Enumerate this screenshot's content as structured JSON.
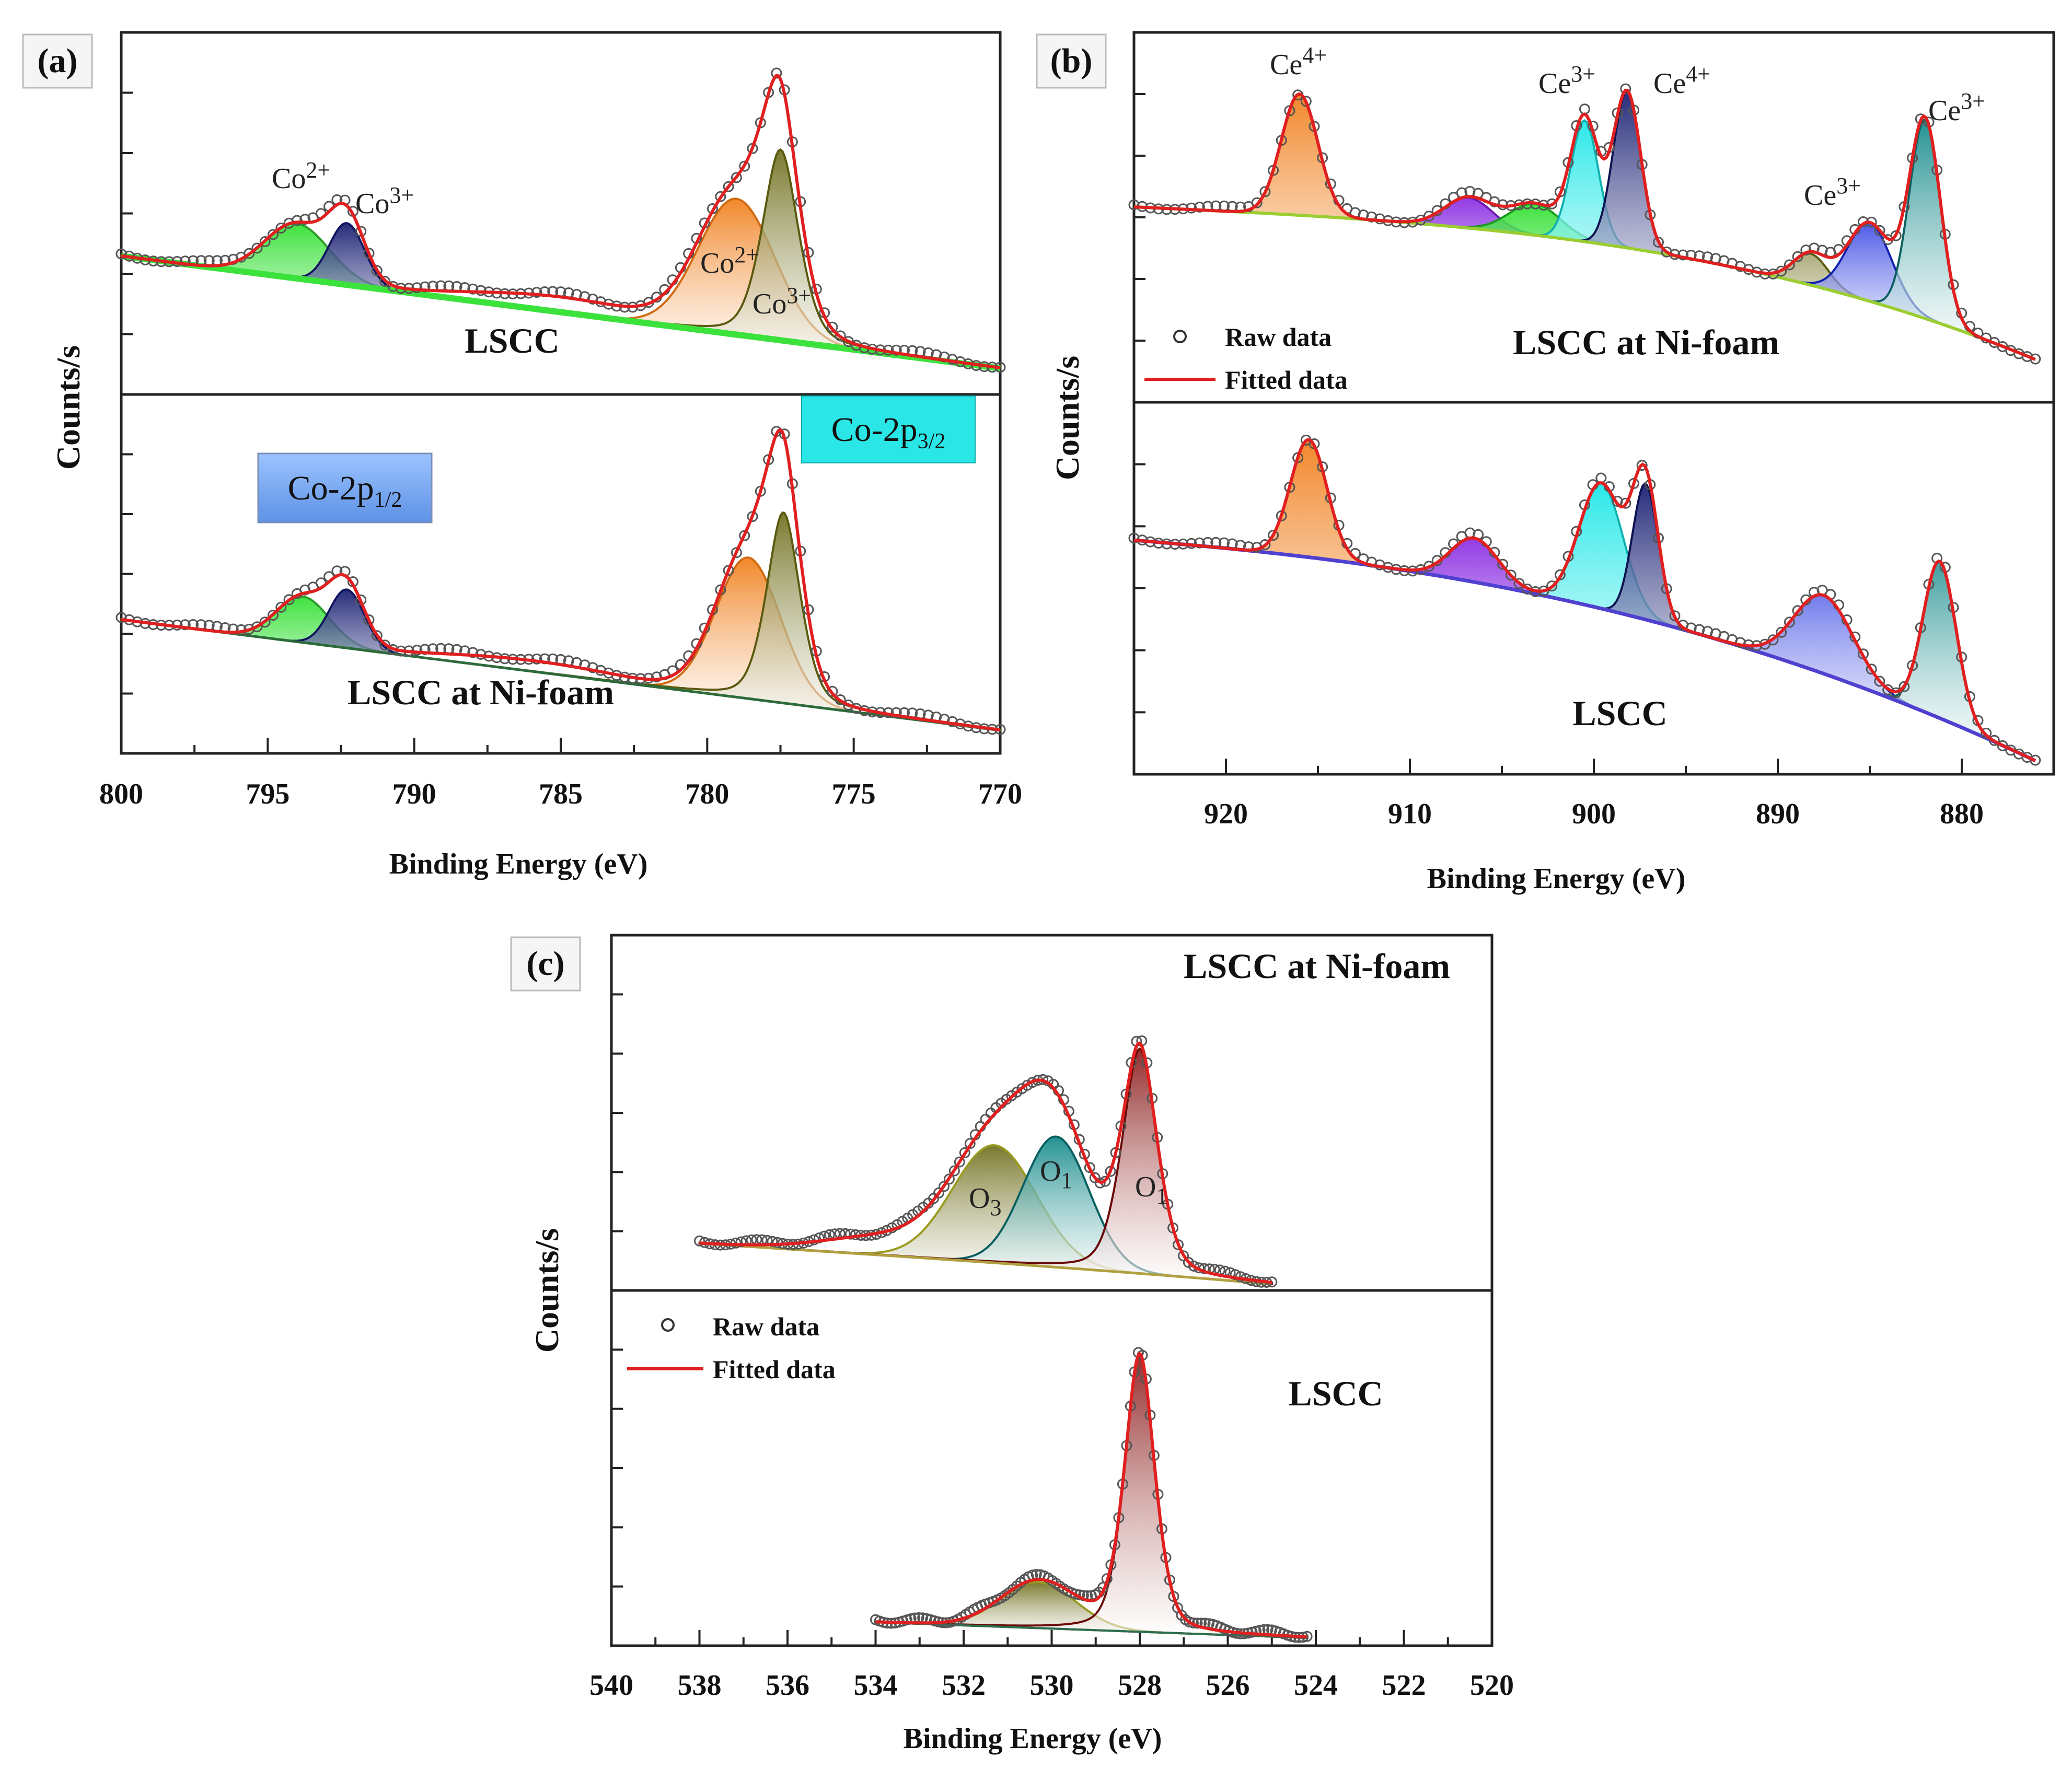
{
  "chart_data": [
    {
      "id": "a",
      "type": "line",
      "panel_label": "(a)",
      "xlabel": "Binding Energy (eV)",
      "ylabel": "Counts/s",
      "xlim": [
        800,
        770
      ],
      "xticks": [
        "800",
        "795",
        "790",
        "785",
        "780",
        "775",
        "770"
      ],
      "subplots": [
        {
          "sample": "LSCC",
          "peaks": [
            {
              "label_base": "Co",
              "label_sup": "2+",
              "center": 794.0,
              "color": "#33dd33"
            },
            {
              "label_base": "Co",
              "label_sup": "3+",
              "center": 792.3,
              "color": "#1a237e"
            },
            {
              "label_base": "Co",
              "label_sup": "2+",
              "center": 779.0,
              "color": "#f08a24"
            },
            {
              "label_base": "Co",
              "label_sup": "3+",
              "center": 777.5,
              "color": "#8b8b22"
            }
          ]
        },
        {
          "sample": "LSCC at Ni-foam",
          "peaks": [
            {
              "center": 793.8,
              "color": "#33dd33"
            },
            {
              "center": 792.3,
              "color": "#1a237e"
            },
            {
              "center": 778.6,
              "color": "#f08a24"
            },
            {
              "center": 777.4,
              "color": "#8b8b22"
            }
          ]
        }
      ],
      "region_labels": [
        {
          "base": "Co-2p",
          "sub": "1/2",
          "style": "blue-box"
        },
        {
          "base": "Co-2p",
          "sub": "3/2",
          "style": "cyan-box"
        }
      ]
    },
    {
      "id": "b",
      "type": "line",
      "panel_label": "(b)",
      "xlabel": "Binding Energy (eV)",
      "ylabel": "Counts/s",
      "xlim": [
        925,
        875
      ],
      "xticks": [
        "920",
        "910",
        "900",
        "890",
        "880"
      ],
      "legend": {
        "raw": "Raw data",
        "fitted": "Fitted data",
        "position": "bottom-left of upper subplot"
      },
      "subplots": [
        {
          "sample": "LSCC at Ni-foam",
          "peaks": [
            {
              "label_base": "Ce",
              "label_sup": "4+",
              "center": 916.0,
              "color": "#f08a24"
            },
            {
              "center": 906.8,
              "color": "#8a2be2"
            },
            {
              "center": 903.2,
              "color": "#33dd33"
            },
            {
              "label_base": "Ce",
              "label_sup": "3+",
              "center": 900.5,
              "color": "#22e8e8"
            },
            {
              "label_base": "Ce",
              "label_sup": "4+",
              "center": 898.2,
              "color": "#1a237e"
            },
            {
              "center": 888.2,
              "color": "#8b8b22"
            },
            {
              "label_base": "Ce",
              "label_sup": "3+",
              "center": 885.0,
              "color": "#2030e0"
            },
            {
              "label_base": "Ce",
              "label_sup": "3+",
              "center": 882.0,
              "color": "#118888"
            }
          ]
        },
        {
          "sample": "LSCC",
          "peaks": [
            {
              "center": 915.5,
              "color": "#f08a24"
            },
            {
              "center": 906.5,
              "color": "#8a2be2"
            },
            {
              "center": 899.6,
              "color": "#22e8e8"
            },
            {
              "center": 897.2,
              "color": "#1a237e"
            },
            {
              "center": 887.5,
              "color": "#2030e0"
            },
            {
              "center": 881.2,
              "color": "#118888"
            }
          ]
        }
      ]
    },
    {
      "id": "c",
      "type": "line",
      "panel_label": "(c)",
      "xlabel": "Binding Energy (eV)",
      "ylabel": "Counts/s",
      "xlim": [
        540,
        520
      ],
      "xticks": [
        "540",
        "538",
        "536",
        "534",
        "532",
        "530",
        "528",
        "526",
        "524",
        "522",
        "520"
      ],
      "legend": {
        "raw": "Raw data",
        "fitted": "Fitted data",
        "position": "top-left of lower subplot"
      },
      "subplots": [
        {
          "sample": "LSCC at Ni-foam",
          "peaks": [
            {
              "label_base": "O",
              "label_sub": "3",
              "center": 531.3,
              "color": "#77772a"
            },
            {
              "label_base": "O",
              "label_sub": "1",
              "center": 529.9,
              "color": "#1a7f80"
            },
            {
              "label_base": "O",
              "label_sub": "1",
              "center": 528.0,
              "color": "#8b1a1a"
            }
          ]
        },
        {
          "sample": "LSCC",
          "peaks": [
            {
              "center": 530.3,
              "color": "#77772a"
            },
            {
              "center": 528.0,
              "color": "#8b1a1a"
            }
          ]
        }
      ]
    }
  ]
}
